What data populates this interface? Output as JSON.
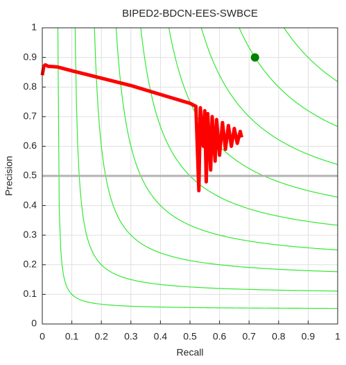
{
  "chart_data": {
    "type": "line",
    "title": "BIPED2-BDCN-EES-SWBCE",
    "xlabel": "Recall",
    "ylabel": "Precision",
    "x": [
      0,
      0.005,
      0.01,
      0.02,
      0.05,
      0.1,
      0.2,
      0.3,
      0.4,
      0.5,
      0.52,
      0.53,
      0.535,
      0.545,
      0.55,
      0.555,
      0.56,
      0.57,
      0.575,
      0.585,
      0.59,
      0.6,
      0.61,
      0.62,
      0.63,
      0.64,
      0.65,
      0.66,
      0.67,
      0.675
    ],
    "values": [
      0.84,
      0.87,
      0.875,
      0.87,
      0.868,
      0.855,
      0.83,
      0.805,
      0.775,
      0.745,
      0.735,
      0.45,
      0.73,
      0.6,
      0.72,
      0.48,
      0.71,
      0.52,
      0.7,
      0.55,
      0.69,
      0.57,
      0.68,
      0.59,
      0.67,
      0.6,
      0.66,
      0.61,
      0.65,
      0.63
    ],
    "color": "#ff0000",
    "iso_f": [
      0.1,
      0.2,
      0.3,
      0.4,
      0.5,
      0.6,
      0.7,
      0.8,
      0.9
    ],
    "iso_color": "#33e833",
    "baseline": 0.5,
    "baseline_color": "#b3b3b3",
    "marker": {
      "x": 0.72,
      "y": 0.9,
      "color": "#008000"
    },
    "xlim": [
      0,
      1
    ],
    "ylim": [
      0,
      1
    ],
    "xticks": [
      0,
      0.1,
      0.2,
      0.3,
      0.4,
      0.5,
      0.6,
      0.7,
      0.8,
      0.9,
      1
    ],
    "yticks": [
      0,
      0.1,
      0.2,
      0.3,
      0.4,
      0.5,
      0.6,
      0.7,
      0.8,
      0.9,
      1
    ],
    "grid": true
  }
}
